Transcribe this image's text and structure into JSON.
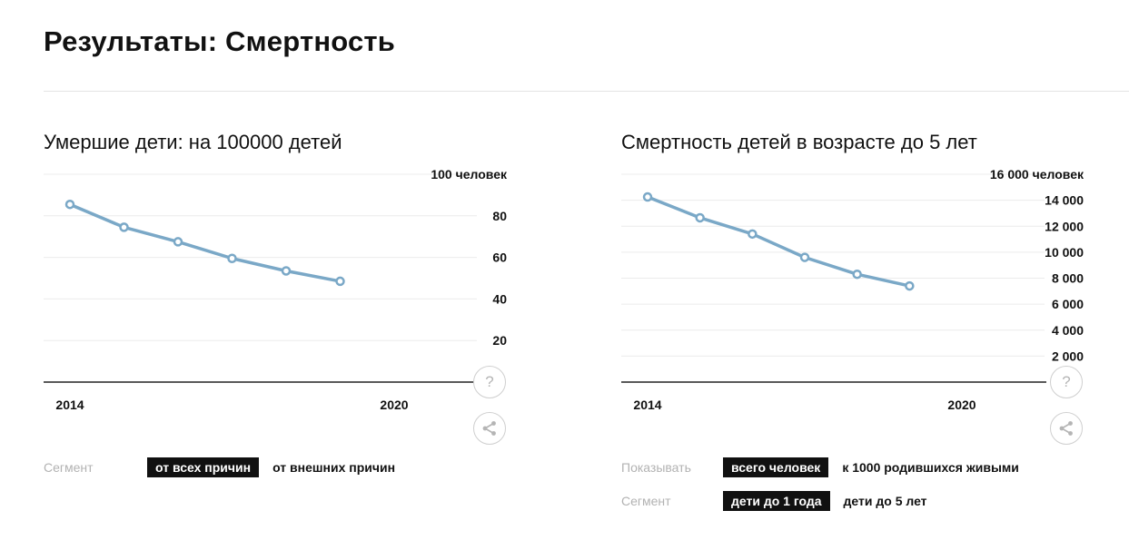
{
  "page": {
    "title": "Результаты: Смертность"
  },
  "chart_data": [
    {
      "type": "line",
      "title": "Умершие дети: на 100000 детей",
      "x": [
        2014,
        2015,
        2016,
        2017,
        2018,
        2019
      ],
      "series": [
        {
          "values": [
            85.5,
            74.5,
            67.5,
            59.5,
            53.5,
            48.5
          ]
        }
      ],
      "x_ticks": [
        "2014",
        "2020"
      ],
      "y_ticks": [
        "20",
        "40",
        "60",
        "80",
        "100 человек"
      ],
      "ylim": [
        0,
        100
      ],
      "xlim": [
        2014,
        2020
      ],
      "color": "#7aa8c7",
      "controls": [
        {
          "label": "Сегмент",
          "options": [
            {
              "text": "от всех причин",
              "active": true
            },
            {
              "text": "от внешних причин",
              "active": false
            }
          ]
        }
      ]
    },
    {
      "type": "line",
      "title": "Смертность детей в возрасте до 5 лет",
      "x": [
        2014,
        2015,
        2016,
        2017,
        2018,
        2019
      ],
      "series": [
        {
          "values": [
            14250,
            12650,
            11400,
            9600,
            8300,
            7400
          ]
        }
      ],
      "x_ticks": [
        "2014",
        "2020"
      ],
      "y_ticks": [
        "2 000",
        "4 000",
        "6 000",
        "8 000",
        "10 000",
        "12 000",
        "14 000",
        "16 000 человек"
      ],
      "ylim": [
        0,
        16000
      ],
      "xlim": [
        2014,
        2020
      ],
      "color": "#7aa8c7",
      "controls": [
        {
          "label": "Показывать",
          "options": [
            {
              "text": "всего человек",
              "active": true
            },
            {
              "text": "к 1000 родившихся живыми",
              "active": false
            }
          ]
        },
        {
          "label": "Сегмент",
          "options": [
            {
              "text": "дети до 1 года",
              "active": true
            },
            {
              "text": "дети до 5 лет",
              "active": false
            }
          ]
        }
      ]
    }
  ],
  "buttons": {
    "help_glyph": "?",
    "share_icon": "share-icon"
  }
}
